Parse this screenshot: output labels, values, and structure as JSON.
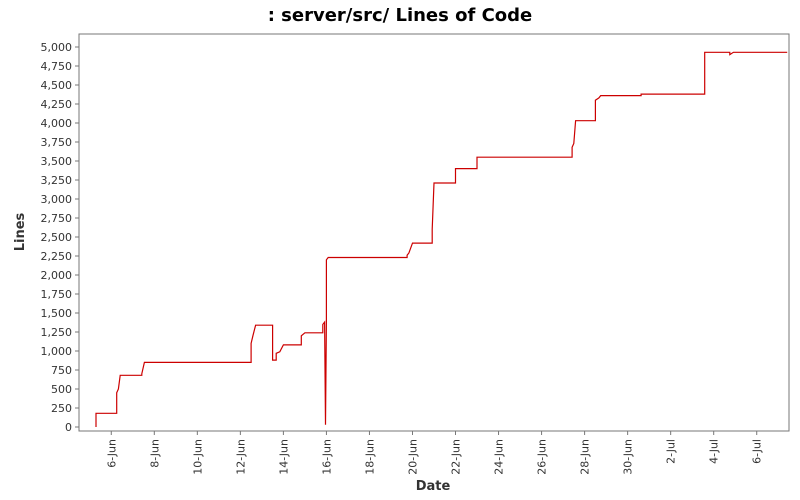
{
  "chart_data": {
    "type": "line",
    "title": ": server/src/ Lines of Code",
    "xlabel": "Date",
    "ylabel": "Lines",
    "ylim": [
      0,
      5150
    ],
    "xlim": [
      "2023-06-04T12:00",
      "2023-07-07T12:00"
    ],
    "grid": false,
    "legend": "none",
    "colors": {
      "line": "#cc0000",
      "plot_border": "#777777",
      "plot_background": "#ffffff"
    },
    "y_ticks": [
      "0",
      "250",
      "500",
      "750",
      "1,000",
      "1,250",
      "1,500",
      "1,750",
      "2,000",
      "2,250",
      "2,500",
      "2,750",
      "3,000",
      "3,250",
      "3,500",
      "3,750",
      "4,000",
      "4,250",
      "4,500",
      "4,750",
      "5,000"
    ],
    "y_tick_values": [
      0,
      250,
      500,
      750,
      1000,
      1250,
      1500,
      1750,
      2000,
      2250,
      2500,
      2750,
      3000,
      3250,
      3500,
      3750,
      4000,
      4250,
      4500,
      4750,
      5000
    ],
    "x_ticks": [
      "6-Jun",
      "8-Jun",
      "10-Jun",
      "12-Jun",
      "14-Jun",
      "16-Jun",
      "18-Jun",
      "20-Jun",
      "22-Jun",
      "24-Jun",
      "26-Jun",
      "28-Jun",
      "30-Jun",
      "2-Jul",
      "4-Jul",
      "6-Jul"
    ],
    "x_tick_dates": [
      "2023-06-06",
      "2023-06-08",
      "2023-06-10",
      "2023-06-12",
      "2023-06-14",
      "2023-06-16",
      "2023-06-18",
      "2023-06-20",
      "2023-06-22",
      "2023-06-24",
      "2023-06-26",
      "2023-06-28",
      "2023-06-30",
      "2023-07-02",
      "2023-07-04",
      "2023-07-06"
    ],
    "series": [
      {
        "name": "",
        "style": "step",
        "points": [
          [
            "2023-06-05T07:00",
            0
          ],
          [
            "2023-06-05T07:00",
            180
          ],
          [
            "2023-06-06T06:00",
            180
          ],
          [
            "2023-06-06T06:00",
            450
          ],
          [
            "2023-06-06T08:00",
            500
          ],
          [
            "2023-06-06T10:00",
            680
          ],
          [
            "2023-06-07T10:00",
            680
          ],
          [
            "2023-06-07T10:00",
            700
          ],
          [
            "2023-06-07T13:00",
            850
          ],
          [
            "2023-06-12T12:00",
            850
          ],
          [
            "2023-06-12T12:00",
            1100
          ],
          [
            "2023-06-12T14:00",
            1200
          ],
          [
            "2023-06-12T17:00",
            1340
          ],
          [
            "2023-06-13T12:00",
            1340
          ],
          [
            "2023-06-13T12:00",
            880
          ],
          [
            "2023-06-13T16:00",
            880
          ],
          [
            "2023-06-13T16:00",
            970
          ],
          [
            "2023-06-13T20:00",
            990
          ],
          [
            "2023-06-14T00:00",
            1080
          ],
          [
            "2023-06-14T20:00",
            1080
          ],
          [
            "2023-06-14T20:00",
            1200
          ],
          [
            "2023-06-15T00:00",
            1240
          ],
          [
            "2023-06-15T20:00",
            1240
          ],
          [
            "2023-06-15T20:00",
            1350
          ],
          [
            "2023-06-15T22:00",
            1380
          ],
          [
            "2023-06-15T23:00",
            30
          ],
          [
            "2023-06-16T00:00",
            1400
          ],
          [
            "2023-06-16T00:00",
            2200
          ],
          [
            "2023-06-16T02:00",
            2230
          ],
          [
            "2023-06-19T18:00",
            2230
          ],
          [
            "2023-06-19T18:00",
            2260
          ],
          [
            "2023-06-19T20:00",
            2290
          ],
          [
            "2023-06-20T00:00",
            2420
          ],
          [
            "2023-06-20T22:00",
            2420
          ],
          [
            "2023-06-20T22:00",
            2600
          ],
          [
            "2023-06-21T00:00",
            3210
          ],
          [
            "2023-06-22T00:00",
            3210
          ],
          [
            "2023-06-22T00:00",
            3400
          ],
          [
            "2023-06-23T00:00",
            3400
          ],
          [
            "2023-06-23T00:00",
            3550
          ],
          [
            "2023-06-27T10:00",
            3550
          ],
          [
            "2023-06-27T10:00",
            3680
          ],
          [
            "2023-06-27T12:00",
            3730
          ],
          [
            "2023-06-27T14:00",
            4030
          ],
          [
            "2023-06-28T12:00",
            4030
          ],
          [
            "2023-06-28T12:00",
            4300
          ],
          [
            "2023-06-28T16:00",
            4330
          ],
          [
            "2023-06-28T18:00",
            4360
          ],
          [
            "2023-06-30T15:00",
            4360
          ],
          [
            "2023-06-30T15:00",
            4380
          ],
          [
            "2023-07-03T14:00",
            4380
          ],
          [
            "2023-07-03T14:00",
            4930
          ],
          [
            "2023-07-04T18:00",
            4930
          ],
          [
            "2023-07-04T18:00",
            4900
          ],
          [
            "2023-07-04T22:00",
            4930
          ],
          [
            "2023-07-07T10:00",
            4930
          ]
        ]
      }
    ]
  }
}
